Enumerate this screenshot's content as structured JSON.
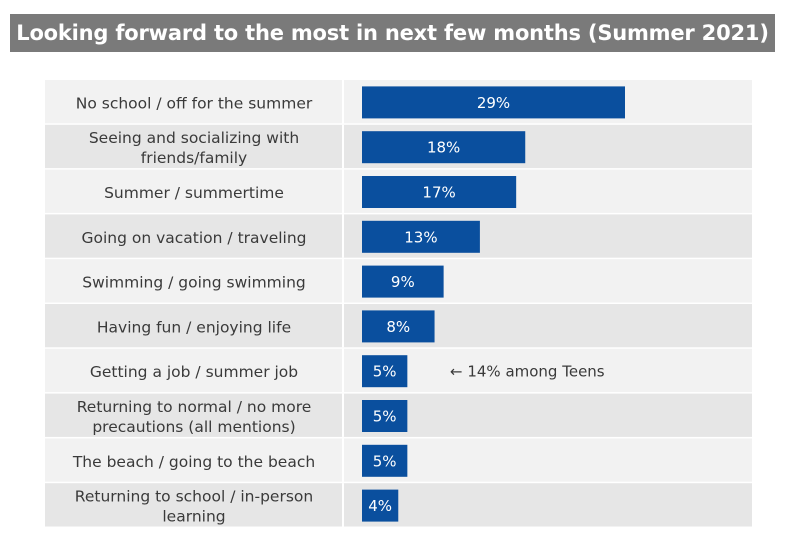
{
  "title": "Looking forward to the most in next few months (Summer 2021)",
  "chart_data": {
    "type": "bar",
    "orientation": "horizontal",
    "title": "Looking forward to the most in next few months (Summer 2021)",
    "categories": [
      [
        "No school / off for the summer"
      ],
      [
        "Seeing and socializing with",
        "friends/family"
      ],
      [
        "Summer / summertime"
      ],
      [
        "Going on vacation / traveling"
      ],
      [
        "Swimming / going swimming"
      ],
      [
        "Having fun / enjoying life"
      ],
      [
        "Getting a job / summer job"
      ],
      [
        "Returning to normal / no more",
        "precautions (all mentions)"
      ],
      [
        "The beach / going to the beach"
      ],
      [
        "Returning to school / in-person",
        "learning"
      ]
    ],
    "values": [
      29,
      18,
      17,
      13,
      9,
      8,
      5,
      5,
      5,
      4
    ],
    "value_labels": [
      "29%",
      "18%",
      "17%",
      "13%",
      "9%",
      "8%",
      "5%",
      "5%",
      "5%",
      "4%"
    ],
    "annotations": [
      {
        "category_index": 6,
        "text": "← 14% among Teens"
      }
    ],
    "bar_color": "#0a4f9e",
    "row_colors": [
      "#f2f2f2",
      "#e6e6e6"
    ],
    "grid": false,
    "legend": "none"
  }
}
